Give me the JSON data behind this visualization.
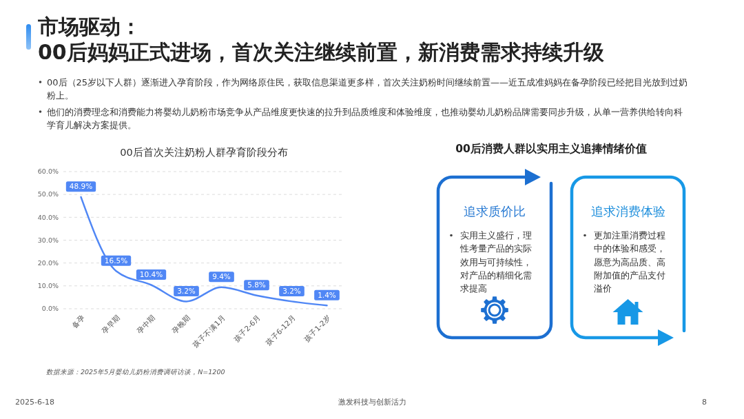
{
  "chart_data": [
    {
      "type": "other",
      "title": "市场驱动：",
      "subtitle": "00后妈妈正式进场，首次关注继续前置，新消费需求持续升级",
      "annotations": [
        "00后（25岁以下人群）逐渐进入孕育阶段，作为网络原住民，获取信息渠道更多样，首次关注奶粉时间继续前置——近五成准妈妈在备孕阶段已经把目光放到过奶粉上。",
        "他们的消费理念和消费能力将婴幼儿奶粉市场竞争从产品维度更快速的拉升到品质维度和体验维度，也推动婴幼儿奶粉品牌需要同步升级，从单一营养供给转向科学育儿解决方案提供。",
        "2025-6-18",
        "激发科技与创新活力",
        "8"
      ]
    },
    {
      "type": "line",
      "title": "00后首次关注奶粉人群孕育阶段分布",
      "categories": [
        "备孕",
        "孕早期",
        "孕中期",
        "孕晚期",
        "孩子不满1月",
        "孩子2-6月",
        "孩子6-12月",
        "孩子1-2岁"
      ],
      "series": [
        {
          "color": "#5087f5",
          "values": [
            48.9,
            16.5,
            10.4,
            3.2,
            9.4,
            5.8,
            3.2,
            1.4
          ],
          "value_labels": [
            "48.9%",
            "16.5%",
            "10.4%",
            "3.2%",
            "9.4%",
            "5.8%",
            "3.2%",
            "1.4%"
          ]
        }
      ],
      "ylim": [
        0,
        60
      ],
      "yticks": [
        {
          "value": 0,
          "label": "0.0%"
        },
        {
          "value": 10,
          "label": "10.0%"
        },
        {
          "value": 20,
          "label": "20.0%"
        },
        {
          "value": 30,
          "label": "30.0%"
        },
        {
          "value": 40,
          "label": "40.0%"
        },
        {
          "value": 50,
          "label": "50.0%"
        },
        {
          "value": 60,
          "label": "60.0%"
        }
      ],
      "grid": "y",
      "annotations": [
        "数据来源：2025年5月婴幼儿奶粉消费调研访谈，N=1200"
      ]
    },
    {
      "type": "other",
      "title": "00后消费人群以实用主义追捧情绪价值",
      "annotations": [
        "追求质价比",
        "实用主义盛行，理性考量产品的实际效用与可持续性，对产品的精细化需求提高",
        "追求消费体验",
        "更加注重消费过程中的体验和感受，愿意为高品质、高附加值的产品支付溢价"
      ]
    }
  ]
}
